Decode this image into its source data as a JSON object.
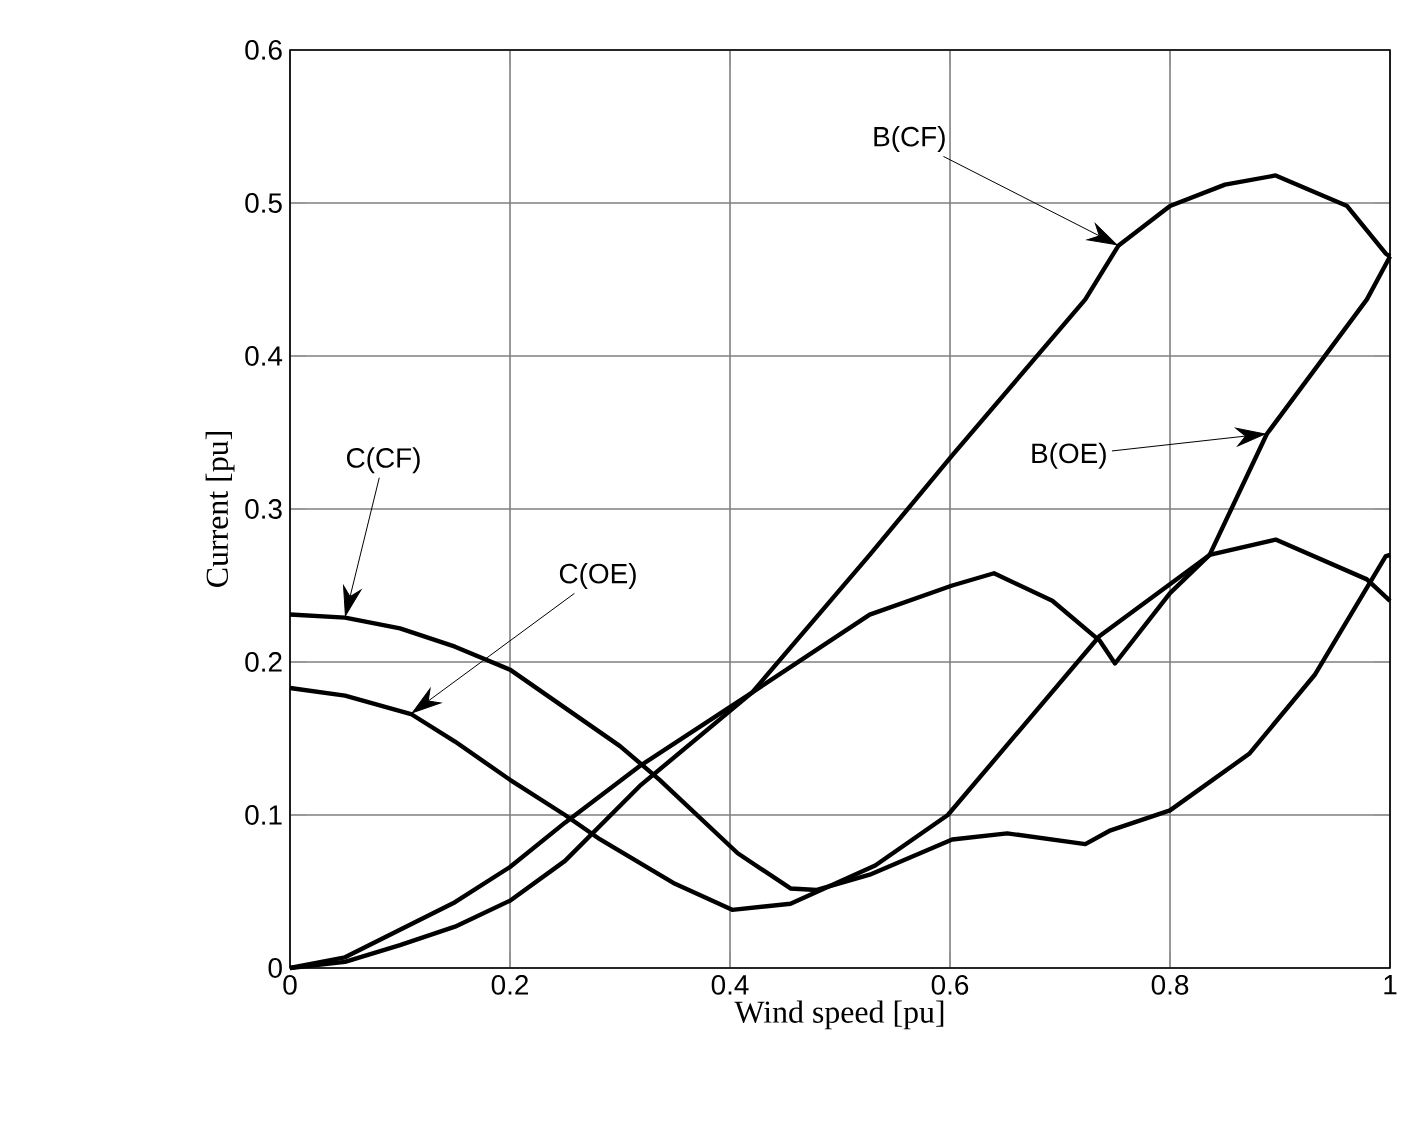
{
  "chart_data": {
    "type": "line",
    "xlabel": "Wind speed [pu]",
    "ylabel": "Current [pu]",
    "x": [
      0,
      0.05,
      0.1,
      0.15,
      0.2,
      0.25,
      0.318,
      0.42,
      0.527,
      0.602,
      0.64,
      0.693,
      0.736,
      0.75,
      0.8,
      0.836,
      0.888,
      0.979,
      1.0
    ],
    "series": [
      {
        "color": "#000000",
        "x": [
          0,
          0.05,
          0.1,
          0.15,
          0.2,
          0.25,
          0.318,
          0.42,
          0.527,
          0.602,
          0.723,
          0.753,
          0.8,
          0.85,
          0.896,
          0.961,
          0.996,
          1.0
        ],
        "values": [
          0,
          0.004,
          0.015,
          0.027,
          0.044,
          0.07,
          0.119,
          0.18,
          0.27,
          0.335,
          0.437,
          0.472,
          0.498,
          0.512,
          0.518,
          0.498,
          0.467,
          0.465
        ]
      },
      {
        "color": "#000000",
        "values": [
          0,
          0.007,
          0.025,
          0.043,
          0.066,
          0.095,
          0.132,
          0.18,
          0.231,
          0.25,
          0.258,
          0.24,
          0.214,
          0.199,
          0.245,
          0.27,
          0.349,
          0.437,
          0.465
        ]
      },
      {
        "color": "#000000",
        "x": [
          0,
          0.05,
          0.1,
          0.15,
          0.2,
          0.25,
          0.3,
          0.336,
          0.407,
          0.455,
          0.479,
          0.527,
          0.602,
          0.652,
          0.723,
          0.746,
          0.8,
          0.872,
          0.932,
          0.996,
          1.0
        ],
        "values": [
          0.231,
          0.229,
          0.222,
          0.21,
          0.195,
          0.17,
          0.145,
          0.123,
          0.075,
          0.052,
          0.051,
          0.061,
          0.084,
          0.088,
          0.081,
          0.09,
          0.103,
          0.14,
          0.192,
          0.269,
          0.27
        ]
      },
      {
        "color": "#000000",
        "x": [
          0,
          0.05,
          0.11,
          0.15,
          0.2,
          0.25,
          0.282,
          0.35,
          0.402,
          0.455,
          0.532,
          0.598,
          0.736,
          0.836,
          0.896,
          0.979,
          1.0
        ],
        "values": [
          0.183,
          0.178,
          0.166,
          0.148,
          0.123,
          0.1,
          0.084,
          0.055,
          0.038,
          0.042,
          0.067,
          0.1,
          0.217,
          0.27,
          0.28,
          0.254,
          0.24
        ]
      }
    ],
    "annotations": [
      "B(CF)",
      "B(OE)",
      "C(CF)",
      "C(OE)"
    ],
    "xlim": [
      0,
      1
    ],
    "ylim": [
      0,
      0.6
    ],
    "xticks": [
      0,
      0.2,
      0.4,
      0.6,
      0.8,
      1
    ],
    "yticks": [
      0,
      0.1,
      0.2,
      0.3,
      0.4,
      0.5,
      0.6
    ],
    "grid": true,
    "marker": "none",
    "line_style": "solid"
  }
}
